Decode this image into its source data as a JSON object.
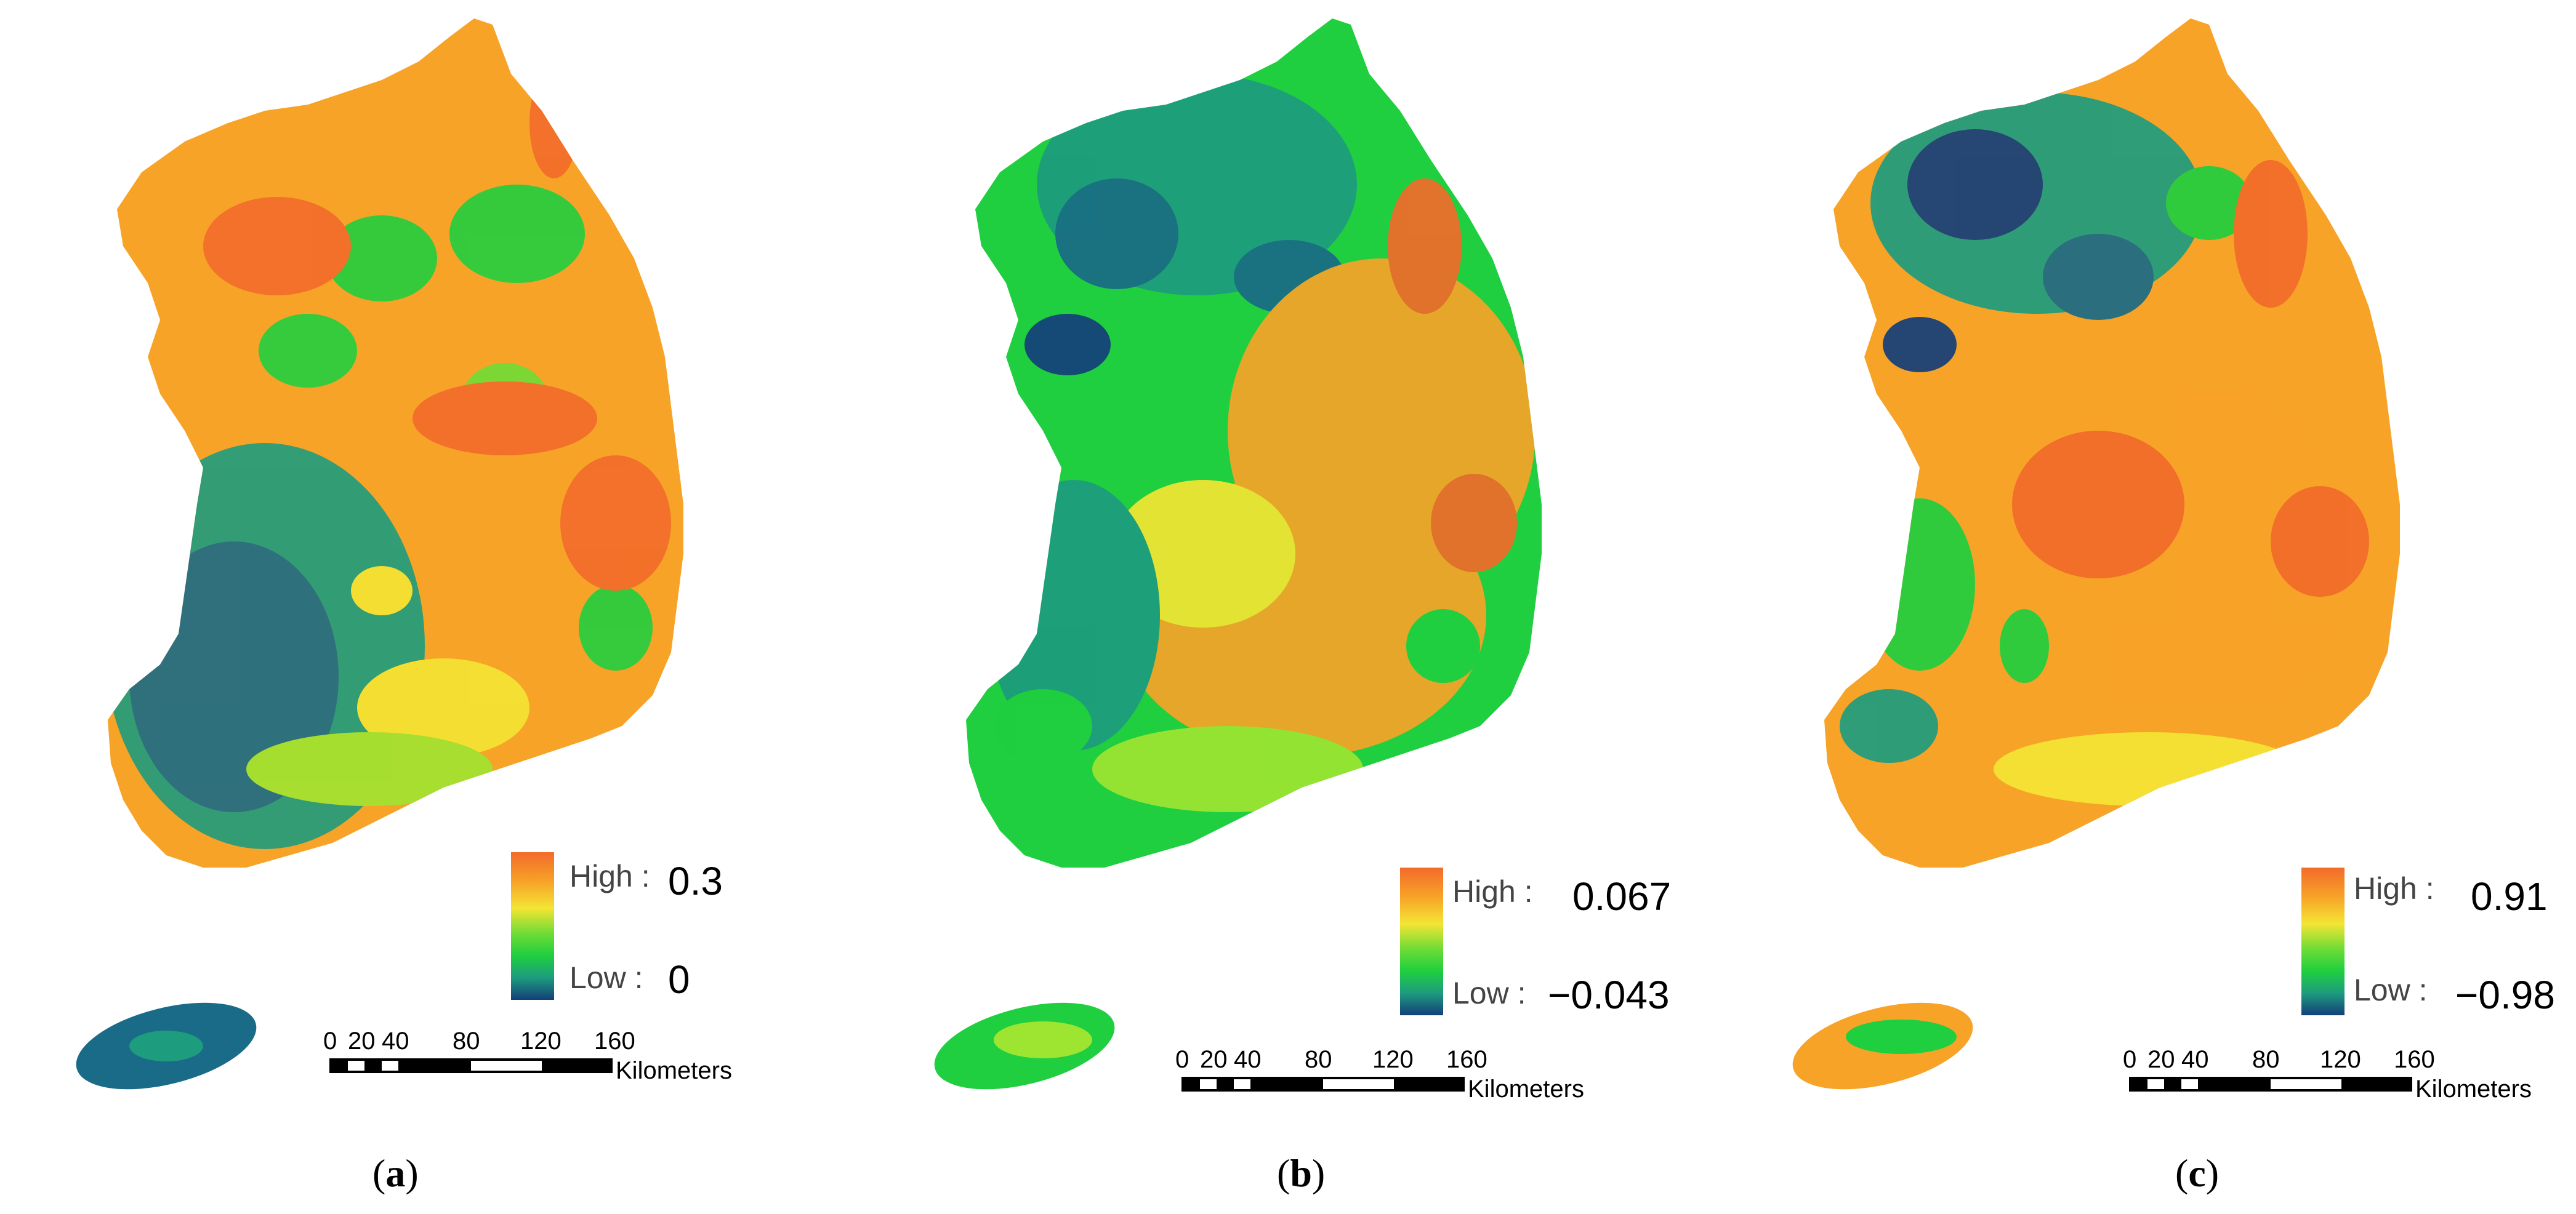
{
  "legend": {
    "high_label": "High :",
    "low_label": "Low :",
    "colors": [
      "#f26b2a",
      "#f7a328",
      "#f4e534",
      "#9ee531",
      "#1fcf3f",
      "#1d9c7e",
      "#143f7a"
    ]
  },
  "scalebar": {
    "ticks": [
      "0",
      "20",
      "40",
      "80",
      "120",
      "160"
    ],
    "unit": "Kilometers"
  },
  "panels": [
    {
      "caption_open": "(",
      "caption_letter": "a",
      "caption_close": ")",
      "high_value": "0.3",
      "low_value": "0"
    },
    {
      "caption_open": "(",
      "caption_letter": "b",
      "caption_close": ")",
      "high_value": "0.067",
      "low_value": "−0.043"
    },
    {
      "caption_open": "(",
      "caption_letter": "c",
      "caption_close": ")",
      "high_value": "0.91",
      "low_value": "−0.98"
    }
  ]
}
